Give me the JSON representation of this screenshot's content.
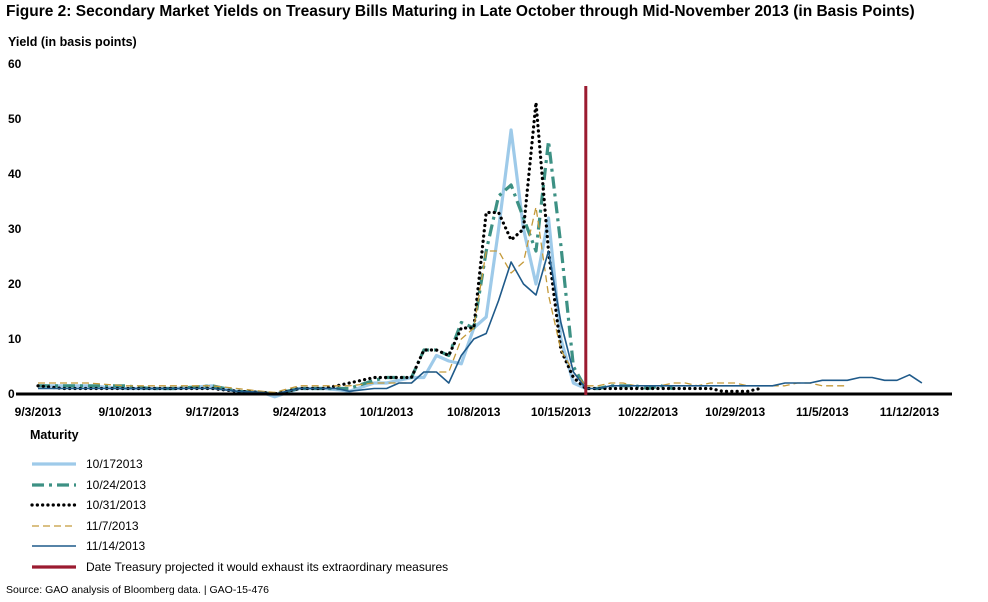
{
  "title": "Figure 2: Secondary Market Yields on Treasury Bills Maturing in Late October through Mid-November 2013 (in Basis Points)",
  "source": "Source: GAO analysis of Bloomberg data. | GAO-15-476",
  "legend_title": "Maturity",
  "chart_data": {
    "type": "line",
    "title": "Figure 2: Secondary Market Yields on Treasury Bills Maturing in Late October through Mid-November 2013 (in Basis Points)",
    "ylabel": "Yield (in basis points)",
    "xlabel": "",
    "ylim": [
      0,
      60
    ],
    "yticks": [
      "0",
      "10",
      "20",
      "30",
      "40",
      "50",
      "60"
    ],
    "xlim": [
      0,
      71
    ],
    "xticks": [
      {
        "label": "9/3/2013",
        "x": 0
      },
      {
        "label": "9/10/2013",
        "x": 7
      },
      {
        "label": "9/17/2013",
        "x": 14
      },
      {
        "label": "9/24/2013",
        "x": 21
      },
      {
        "label": "10/1/2013",
        "x": 28
      },
      {
        "label": "10/8/2013",
        "x": 35
      },
      {
        "label": "10/15/2013",
        "x": 42
      },
      {
        "label": "10/22/2013",
        "x": 49
      },
      {
        "label": "10/29/2013",
        "x": 56
      },
      {
        "label": "11/5/2013",
        "x": 63
      },
      {
        "label": "11/12/2013",
        "x": 70
      }
    ],
    "vline": {
      "x": 44,
      "label": "Date Treasury projected it would exhaust its extraordinary measures",
      "color": "#9b1b30"
    },
    "series": [
      {
        "name": "10/172013",
        "color": "#9ecae9",
        "style": "solid-thick",
        "x": [
          0,
          2,
          4,
          7,
          9,
          11,
          14,
          16,
          18,
          19,
          21,
          23,
          24,
          25,
          27,
          28,
          29,
          30,
          31,
          32,
          33,
          34,
          35,
          36,
          37,
          38,
          39,
          40,
          41,
          42,
          43,
          44
        ],
        "y": [
          1.5,
          1.5,
          1.5,
          1,
          1,
          1,
          1.5,
          0.5,
          0.3,
          -0.5,
          1,
          1,
          0.8,
          0.5,
          2,
          2,
          2.5,
          3,
          3,
          7,
          6,
          5.5,
          12,
          14,
          30,
          48,
          30,
          20,
          32,
          10,
          2,
          1
        ]
      },
      {
        "name": "10/24/2013",
        "color": "#3d9184",
        "style": "dashdot",
        "x": [
          0,
          2,
          4,
          7,
          9,
          11,
          14,
          16,
          18,
          19,
          21,
          23,
          24,
          25,
          27,
          28,
          29,
          30,
          31,
          32,
          33,
          34,
          35,
          36,
          37,
          38,
          39,
          40,
          41,
          42,
          43,
          44,
          45,
          46,
          47,
          48,
          49,
          50,
          51
        ],
        "y": [
          1.5,
          1.5,
          1.5,
          1.5,
          1,
          1,
          1.5,
          0.5,
          0.3,
          0,
          1,
          1,
          1,
          1,
          2.5,
          3,
          3,
          3,
          8,
          8,
          7,
          13,
          12,
          26,
          36,
          38,
          32,
          26,
          46,
          27,
          5,
          1,
          1,
          1.5,
          1.5,
          1.5,
          1,
          1.5,
          1
        ]
      },
      {
        "name": "10/31/2013",
        "color": "#000000",
        "style": "dotted",
        "x": [
          0,
          2,
          4,
          7,
          9,
          11,
          14,
          16,
          18,
          19,
          21,
          23,
          24,
          25,
          27,
          28,
          29,
          30,
          31,
          32,
          33,
          34,
          35,
          36,
          37,
          38,
          39,
          40,
          41,
          42,
          43,
          44,
          45,
          46,
          47,
          48,
          49,
          50,
          51,
          52,
          53,
          54,
          55,
          56,
          57,
          58
        ],
        "y": [
          1.5,
          1,
          1,
          1,
          1,
          1,
          1,
          0.5,
          0.3,
          0,
          1,
          1,
          1.5,
          2,
          3,
          3,
          3,
          3,
          8,
          8,
          7,
          12,
          12,
          33,
          33,
          28,
          30,
          53,
          26,
          8,
          3,
          1,
          1,
          1,
          1,
          1,
          1,
          1,
          1,
          1,
          1,
          1,
          0.5,
          0.5,
          0.5,
          1
        ]
      },
      {
        "name": "11/7/2013",
        "color": "#c49a3a",
        "style": "dashed",
        "x": [
          0,
          2,
          4,
          7,
          9,
          11,
          14,
          16,
          18,
          19,
          21,
          23,
          24,
          25,
          27,
          28,
          29,
          30,
          31,
          32,
          33,
          34,
          35,
          36,
          37,
          38,
          39,
          40,
          41,
          42,
          43,
          44,
          45,
          46,
          47,
          48,
          49,
          50,
          51,
          52,
          53,
          54,
          55,
          56,
          57,
          58,
          59,
          60,
          61,
          62,
          63,
          64,
          65
        ],
        "y": [
          2,
          2,
          2,
          1.5,
          1.5,
          1.5,
          1.5,
          1,
          0.5,
          0.3,
          1.5,
          1.5,
          1.5,
          1.5,
          2,
          2,
          2,
          2,
          4,
          4,
          4,
          10,
          12,
          26,
          26,
          22,
          24,
          34,
          18,
          8,
          4,
          1.5,
          1.5,
          2,
          2,
          1.5,
          1.5,
          1.5,
          2,
          2,
          1.5,
          2,
          2,
          2,
          1.5,
          1.5,
          1.5,
          1.5,
          2,
          2,
          1.5,
          1.5,
          1.5
        ]
      },
      {
        "name": "11/14/2013",
        "color": "#1f5a8a",
        "style": "solid",
        "x": [
          0,
          2,
          4,
          7,
          9,
          11,
          14,
          16,
          18,
          19,
          21,
          23,
          24,
          25,
          27,
          28,
          29,
          30,
          31,
          32,
          33,
          34,
          35,
          36,
          37,
          38,
          39,
          40,
          41,
          42,
          43,
          44,
          45,
          46,
          47,
          48,
          49,
          50,
          51,
          52,
          53,
          54,
          55,
          56,
          57,
          58,
          59,
          60,
          61,
          62,
          63,
          64,
          65,
          66,
          67,
          68,
          69,
          70,
          71
        ],
        "y": [
          1,
          1,
          1,
          1,
          1,
          1,
          1,
          0.5,
          0.3,
          0,
          1,
          1,
          1,
          0.5,
          1,
          1,
          2,
          2,
          4,
          4,
          2,
          7,
          10,
          11,
          17,
          24,
          20,
          18,
          26,
          13,
          4,
          1,
          1,
          1.5,
          1.5,
          1.5,
          1.5,
          1.5,
          1.5,
          1.5,
          1.5,
          1.5,
          1.5,
          1.5,
          1.5,
          1.5,
          1.5,
          2,
          2,
          2,
          2.5,
          2.5,
          2.5,
          3,
          3,
          2.5,
          2.5,
          3.5,
          2
        ]
      }
    ]
  }
}
